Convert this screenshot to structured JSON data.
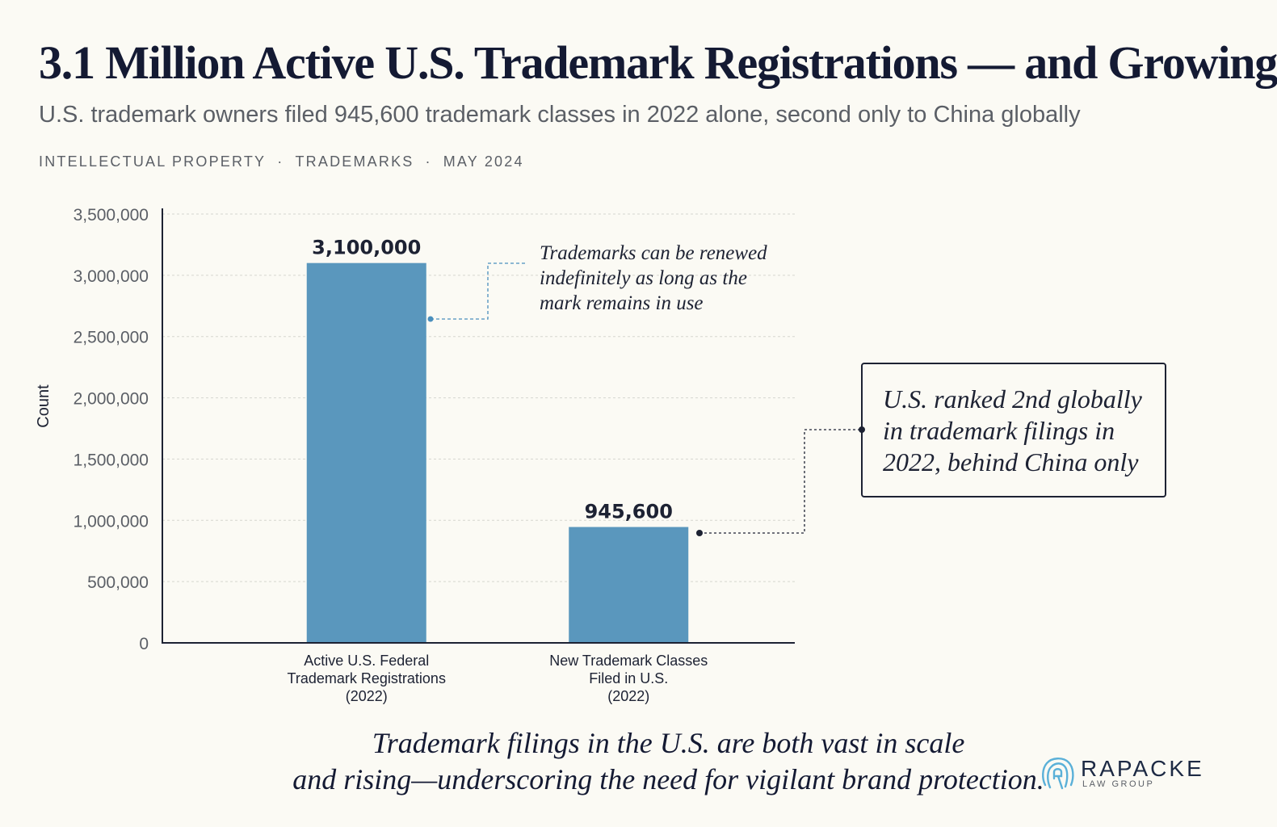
{
  "header": {
    "title": "3.1 Million Active U.S. Trademark Registrations — and Growing",
    "subtitle": "U.S. trademark owners filed 945,600 trademark classes in 2022 alone, second only to China globally",
    "tags": [
      "INTELLECTUAL PROPERTY",
      "TRADEMARKS",
      "MAY 2024"
    ],
    "tag_separator": "·"
  },
  "chart_data": {
    "type": "bar",
    "categories": [
      [
        "Active U.S. Federal",
        "Trademark Registrations",
        "(2022)"
      ],
      [
        "New Trademark Classes",
        "Filed in U.S.",
        "(2022)"
      ]
    ],
    "values": [
      3100000,
      945600
    ],
    "data_labels": [
      "3,100,000",
      "945,600"
    ],
    "ylabel": "Count",
    "ylim": [
      0,
      3500000
    ],
    "yticks": [
      0,
      500000,
      1000000,
      1500000,
      2000000,
      2500000,
      3000000,
      3500000
    ],
    "ytick_labels": [
      "0",
      "500,000",
      "1,000,000",
      "1,500,000",
      "2,000,000",
      "2,500,000",
      "3,000,000",
      "3,500,000"
    ],
    "grid": true,
    "bar_color": "#5a97bd"
  },
  "annotations": {
    "note1": "Trademarks can be renewed indefinitely as long as the mark remains in use",
    "note2": "U.S. ranked 2nd globally in trademark filings in 2022, behind China only"
  },
  "footer": {
    "line1": "Trademark filings in the U.S. are both vast in scale",
    "line2": "and rising—underscoring the need for vigilant brand protection."
  },
  "logo": {
    "name": "RAPACKE",
    "sub": "LAW GROUP",
    "icon": "fingerprint-icon",
    "color": "#5ab0d8"
  }
}
